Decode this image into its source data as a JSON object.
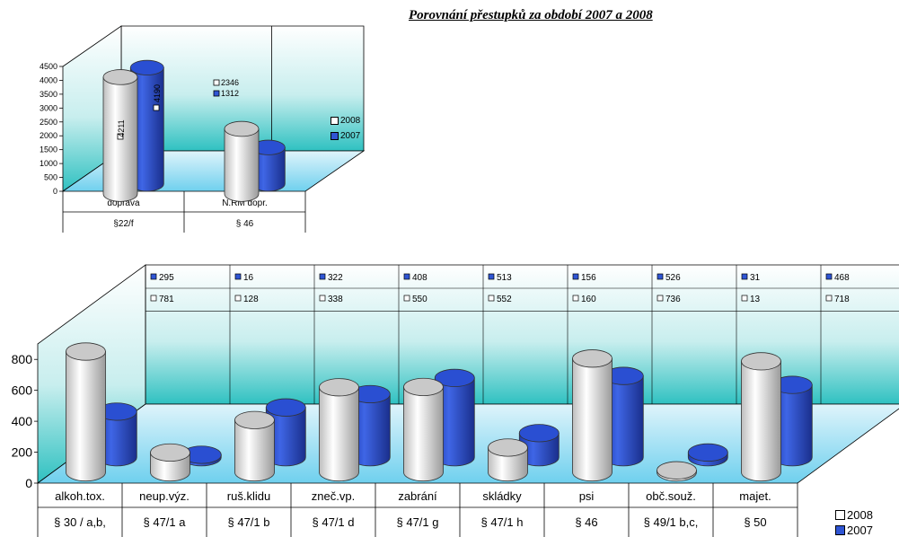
{
  "title": "Porovnání přestupků za období 2007 a 2008",
  "colors": {
    "y2008": "#ffffff",
    "y2007": "#2f55d4",
    "floor_top": "#e6f6fc",
    "floor_bottom": "#2fc1c1"
  },
  "chart_data": [
    {
      "type": "bar",
      "title": "Porovnání přestupků za období 2007 a 2008",
      "categories": [
        "doprava",
        "N.RM dopr."
      ],
      "category_sublabels": [
        "§22/f",
        "§ 46"
      ],
      "series": [
        {
          "name": "2008",
          "values": [
            4211,
            2346
          ]
        },
        {
          "name": "2007",
          "values": [
            4190,
            1312
          ]
        }
      ],
      "data_labels": {
        "2008": [
          "4211",
          "2346"
        ],
        "2007": [
          "4190",
          "1312"
        ]
      },
      "yticks": [
        "0",
        "500",
        "1000",
        "1500",
        "2000",
        "2500",
        "3000",
        "3500",
        "4000",
        "4500"
      ],
      "ylim": [
        0,
        4500
      ],
      "legend": [
        "2008",
        "2007"
      ],
      "legend_position": "right"
    },
    {
      "type": "bar",
      "categories": [
        "alkoh.tox.",
        "neup.výz.",
        "ruš.klidu",
        "zneč.vp.",
        "zabrání",
        "skládky",
        "psi",
        "obč.souž.",
        "majet."
      ],
      "category_sublabels": [
        "§ 30 / a,b,",
        "§ 47/1 a",
        "§ 47/1 b",
        "§ 47/1 d",
        "§ 47/1 g",
        "§ 47/1 h",
        "§ 46",
        "§ 49/1 b,c,",
        "§ 50"
      ],
      "series": [
        {
          "name": "2008",
          "values": [
            781,
            128,
            338,
            550,
            552,
            160,
            736,
            13,
            718
          ]
        },
        {
          "name": "2007",
          "values": [
            295,
            16,
            322,
            408,
            513,
            156,
            526,
            31,
            468
          ]
        }
      ],
      "table_rows": {
        "2007": [
          "295",
          "16",
          "322",
          "408",
          "513",
          "156",
          "526",
          "31",
          "468"
        ],
        "2008": [
          "781",
          "128",
          "338",
          "550",
          "552",
          "160",
          "736",
          "13",
          "718"
        ]
      },
      "yticks": [
        "0",
        "200",
        "400",
        "600",
        "800"
      ],
      "ylim": [
        0,
        900
      ],
      "legend": [
        "2008",
        "2007"
      ],
      "legend_position": "bottom-right"
    }
  ]
}
